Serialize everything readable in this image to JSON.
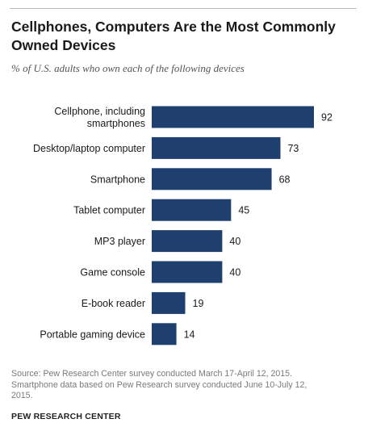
{
  "header": {
    "title_line1": "Cellphones, Computers Are the Most Commonly",
    "title_line2": "Owned Devices",
    "subtitle": "% of U.S. adults who own each of the following devices"
  },
  "footer": {
    "source_line1": "Source: Pew Research Center survey conducted March 17-April 12, 2015.",
    "source_line2": "Smartphone data based on Pew Research survey conducted June 10-July 12,",
    "source_line3": "2015.",
    "brand": "PEW RESEARCH CENTER"
  },
  "colors": {
    "bar": "#1f3f6e"
  },
  "chart_data": {
    "type": "bar",
    "orientation": "horizontal",
    "title": "Cellphones, Computers Are the Most Commonly Owned Devices",
    "subtitle": "% of U.S. adults who own each of the following devices",
    "categories": [
      [
        "Cellphone, including",
        "smartphones"
      ],
      [
        "Desktop/laptop computer"
      ],
      [
        "Smartphone"
      ],
      [
        "Tablet computer"
      ],
      [
        "MP3 player"
      ],
      [
        "Game console"
      ],
      [
        "E-book reader"
      ],
      [
        "Portable gaming device"
      ]
    ],
    "values": [
      92,
      73,
      68,
      45,
      40,
      40,
      19,
      14
    ],
    "xlim": [
      0,
      92
    ],
    "grid": false,
    "legend": "none"
  }
}
